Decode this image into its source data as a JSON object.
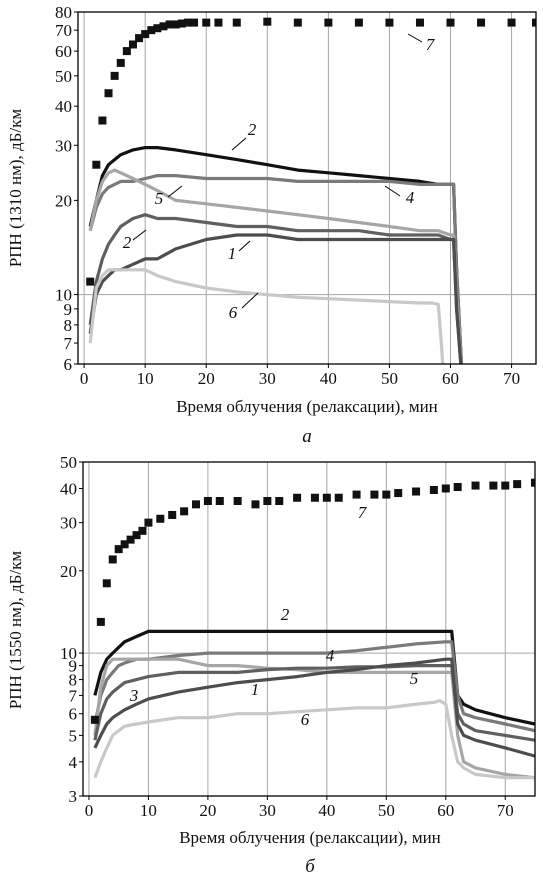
{
  "chart_data": [
    {
      "type": "line",
      "subtitle": "а",
      "xlabel": "Время облучения (релаксации), мин",
      "ylabel": "РПН (1310 нм), дБ/км",
      "xlim": [
        -1,
        74
      ],
      "ylim": [
        6,
        80
      ],
      "yscale": "log",
      "grid": true,
      "xticks": [
        0,
        10,
        20,
        30,
        40,
        50,
        60,
        70
      ],
      "yticks": [
        6,
        7,
        8,
        9,
        10,
        20,
        30,
        40,
        50,
        60,
        70,
        80
      ],
      "series": [
        {
          "name": "2",
          "color": "#111111",
          "x": [
            1,
            2,
            3,
            4,
            5,
            6,
            8,
            10,
            12,
            15,
            20,
            25,
            30,
            35,
            40,
            45,
            50,
            55,
            58,
            60,
            60.5,
            61,
            62
          ],
          "y": [
            16.5,
            20,
            24,
            26,
            27,
            28,
            29,
            29.5,
            29.5,
            29,
            28,
            27,
            26,
            25,
            24.5,
            24,
            23.5,
            23,
            22.5,
            22.5,
            22.5,
            12,
            5
          ]
        },
        {
          "name": "4",
          "color": "#7a7a7a",
          "x": [
            1,
            2,
            3,
            4,
            5,
            6,
            8,
            10,
            12,
            15,
            20,
            25,
            30,
            35,
            40,
            45,
            50,
            55,
            58,
            60,
            60.5,
            61,
            62
          ],
          "y": [
            16,
            19,
            21,
            22,
            22.5,
            23,
            23,
            23.5,
            24,
            24,
            23.5,
            23.5,
            23.5,
            23,
            23,
            23,
            23,
            22.5,
            22.5,
            22.5,
            22.5,
            12,
            5
          ]
        },
        {
          "name": "5",
          "color": "#a6a6a6",
          "x": [
            1,
            2,
            3,
            4,
            5,
            6,
            8,
            10,
            12,
            15,
            20,
            25,
            30,
            35,
            40,
            45,
            50,
            55,
            58,
            60,
            60.5,
            61,
            62
          ],
          "y": [
            16,
            20,
            23,
            24.5,
            25,
            24.5,
            23.5,
            22.5,
            21.5,
            20,
            19.5,
            19,
            18.5,
            18,
            17.5,
            17,
            16.5,
            16,
            16,
            15.5,
            15.5,
            10,
            5
          ]
        },
        {
          "name": "2",
          "color": "#5f5f5f",
          "x": [
            1,
            2,
            3,
            4,
            5,
            6,
            8,
            10,
            12,
            15,
            20,
            25,
            30,
            35,
            40,
            45,
            50,
            55,
            58,
            60,
            60.5,
            61,
            62
          ],
          "y": [
            8,
            11,
            13,
            14.5,
            15.5,
            16.5,
            17.5,
            18,
            17.5,
            17.5,
            17,
            16.5,
            16.5,
            16,
            16,
            16,
            15.5,
            15.5,
            15.5,
            15,
            15,
            9,
            5
          ]
        },
        {
          "name": "1",
          "color": "#4d4d4d",
          "x": [
            1,
            2,
            3,
            4,
            5,
            6,
            8,
            10,
            12,
            15,
            20,
            25,
            30,
            35,
            40,
            45,
            50,
            55,
            58,
            60,
            60.5,
            61,
            62
          ],
          "y": [
            7.5,
            10,
            11,
            11.5,
            12,
            12,
            12.5,
            13,
            13,
            14,
            15,
            15.5,
            15.5,
            15,
            15,
            15,
            15,
            15,
            15,
            15,
            15,
            9,
            5
          ]
        },
        {
          "name": "6",
          "color": "#c8c8c8",
          "x": [
            1,
            2,
            3,
            4,
            5,
            6,
            8,
            10,
            12,
            15,
            20,
            25,
            30,
            35,
            40,
            45,
            50,
            55,
            57,
            58,
            58.5,
            59
          ],
          "y": [
            7,
            10.5,
            11.5,
            12,
            12,
            12,
            12,
            12,
            11.5,
            11,
            10.5,
            10.2,
            10,
            9.8,
            9.7,
            9.6,
            9.5,
            9.4,
            9.4,
            9.3,
            7,
            5
          ]
        },
        {
          "name": "7",
          "color": "#111111",
          "marker": "square",
          "x": [
            1,
            2,
            3,
            4,
            5,
            6,
            7,
            8,
            9,
            10,
            11,
            12,
            13,
            14,
            15,
            16,
            17,
            18,
            20,
            22,
            25,
            30,
            35,
            40,
            45,
            50,
            55,
            60,
            65,
            70,
            74
          ],
          "y": [
            11,
            26,
            36,
            44,
            50,
            55,
            60,
            63,
            66,
            68,
            70,
            71,
            72,
            73,
            73,
            73.5,
            74,
            74,
            74,
            74,
            74,
            74.5,
            74,
            74,
            74,
            74,
            74,
            74,
            74,
            74,
            74
          ]
        }
      ],
      "annotations": [
        "7",
        "2",
        "4",
        "5",
        "2",
        "1",
        "6"
      ]
    },
    {
      "type": "line",
      "subtitle": "б",
      "xlabel": "Время облучения (релаксации), мин",
      "ylabel": "РПН (1550 нм), дБ/км",
      "xlim": [
        -1,
        75
      ],
      "ylim": [
        3,
        50
      ],
      "yscale": "log",
      "grid": true,
      "xticks": [
        0,
        10,
        20,
        30,
        40,
        50,
        60,
        70
      ],
      "yticks": [
        3,
        4,
        5,
        6,
        7,
        8,
        9,
        10,
        20,
        30,
        40,
        50
      ],
      "series": [
        {
          "name": "2",
          "color": "#111111",
          "x": [
            1,
            2,
            3,
            4,
            5,
            6,
            8,
            10,
            15,
            20,
            25,
            30,
            35,
            40,
            45,
            50,
            55,
            60,
            61,
            62,
            63,
            65,
            70,
            75
          ],
          "y": [
            7,
            8.5,
            9.5,
            10,
            10.5,
            11,
            11.5,
            12,
            12,
            12,
            12,
            12,
            12,
            12,
            12,
            12,
            12,
            12,
            12,
            7,
            6.5,
            6.2,
            5.8,
            5.5
          ]
        },
        {
          "name": "4",
          "color": "#7a7a7a",
          "x": [
            1,
            2,
            3,
            4,
            5,
            6,
            8,
            10,
            15,
            20,
            25,
            30,
            35,
            40,
            45,
            50,
            55,
            60,
            61,
            62,
            63,
            65,
            70,
            75
          ],
          "y": [
            5.5,
            7,
            8,
            8.5,
            9,
            9.2,
            9.5,
            9.5,
            9.8,
            10,
            10,
            10,
            10,
            10,
            10.2,
            10.5,
            10.8,
            11,
            11,
            7,
            6,
            5.8,
            5.5,
            5.2
          ]
        },
        {
          "name": "5",
          "color": "#a6a6a6",
          "x": [
            1,
            2,
            3,
            4,
            5,
            6,
            8,
            10,
            15,
            20,
            25,
            30,
            35,
            40,
            45,
            50,
            55,
            60,
            61,
            62,
            63,
            65,
            70,
            75
          ],
          "y": [
            5,
            7.5,
            9,
            9.5,
            9.5,
            9.5,
            9.5,
            9.5,
            9.5,
            9,
            9,
            8.8,
            8.7,
            8.5,
            8.5,
            8.5,
            8.5,
            8.5,
            8.5,
            5,
            4,
            3.8,
            3.6,
            3.5
          ]
        },
        {
          "name": "3",
          "color": "#5f5f5f",
          "x": [
            1,
            2,
            3,
            4,
            5,
            6,
            8,
            10,
            15,
            20,
            25,
            30,
            35,
            40,
            45,
            50,
            55,
            60,
            61,
            62,
            63,
            65,
            70,
            75
          ],
          "y": [
            4.8,
            6,
            6.8,
            7.2,
            7.5,
            7.8,
            8,
            8.2,
            8.5,
            8.5,
            8.5,
            8.7,
            8.8,
            8.8,
            8.9,
            8.9,
            9,
            9,
            9,
            6,
            5.5,
            5.2,
            5,
            4.8
          ]
        },
        {
          "name": "1",
          "color": "#4d4d4d",
          "x": [
            1,
            2,
            3,
            4,
            5,
            6,
            8,
            10,
            15,
            20,
            25,
            30,
            35,
            40,
            45,
            50,
            55,
            60,
            61,
            62,
            63,
            65,
            70,
            75
          ],
          "y": [
            4.5,
            5,
            5.5,
            5.8,
            6,
            6.2,
            6.5,
            6.8,
            7.2,
            7.5,
            7.8,
            8,
            8.2,
            8.5,
            8.7,
            9,
            9.2,
            9.5,
            9.5,
            5.5,
            5,
            4.8,
            4.5,
            4.2
          ]
        },
        {
          "name": "6",
          "color": "#c8c8c8",
          "x": [
            1,
            2,
            3,
            4,
            5,
            6,
            8,
            10,
            15,
            20,
            25,
            30,
            35,
            40,
            45,
            50,
            55,
            58,
            59,
            60,
            61,
            62,
            63,
            65,
            70,
            75
          ],
          "y": [
            3.5,
            4,
            4.5,
            5,
            5.2,
            5.4,
            5.5,
            5.6,
            5.8,
            5.8,
            6,
            6,
            6.1,
            6.2,
            6.3,
            6.3,
            6.5,
            6.6,
            6.7,
            6.5,
            5,
            4,
            3.8,
            3.6,
            3.5,
            3.5
          ]
        },
        {
          "name": "7",
          "color": "#111111",
          "marker": "square",
          "x": [
            1,
            2,
            3,
            4,
            5,
            6,
            7,
            8,
            9,
            10,
            12,
            14,
            16,
            18,
            20,
            22,
            25,
            28,
            30,
            32,
            35,
            38,
            40,
            42,
            45,
            48,
            50,
            52,
            55,
            58,
            60,
            62,
            65,
            68,
            70,
            72,
            75
          ],
          "y": [
            5.7,
            13,
            18,
            22,
            24,
            25,
            26,
            27,
            28,
            30,
            31,
            32,
            33,
            35,
            36,
            36,
            36,
            35,
            36,
            36,
            37,
            37,
            37,
            37,
            38,
            38,
            38,
            38.5,
            39,
            39.5,
            40,
            40.5,
            41,
            41,
            41,
            41.5,
            42
          ]
        }
      ],
      "annotations": [
        "2",
        "7",
        "4",
        "3",
        "1",
        "5",
        "6"
      ]
    }
  ]
}
